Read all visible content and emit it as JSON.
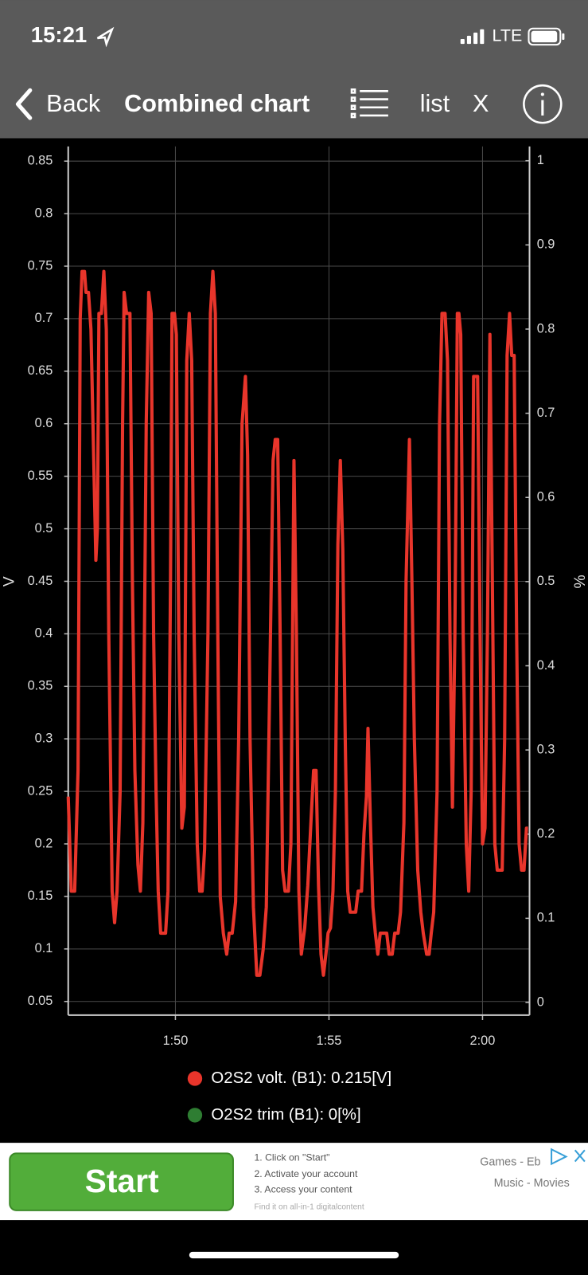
{
  "status_bar": {
    "time": "15:21",
    "network": "LTE"
  },
  "nav": {
    "back": "Back",
    "title": "Combined chart",
    "list": "list",
    "close": "X"
  },
  "chart_data": {
    "type": "line",
    "y_label": "V",
    "y2_label": "%",
    "x": [
      106.51,
      106.61,
      106.72,
      106.83,
      106.9,
      106.96,
      107.04,
      107.09,
      107.17,
      107.25,
      107.33,
      107.41,
      107.46,
      107.51,
      107.59,
      107.67,
      107.75,
      107.83,
      107.94,
      108.02,
      108.1,
      108.2,
      108.28,
      108.33,
      108.41,
      108.52,
      108.6,
      108.68,
      108.78,
      108.86,
      108.94,
      109.05,
      109.13,
      109.21,
      109.29,
      109.37,
      109.44,
      109.52,
      109.68,
      109.76,
      109.84,
      109.89,
      109.97,
      110.03,
      110.11,
      110.21,
      110.29,
      110.37,
      110.45,
      110.53,
      110.61,
      110.71,
      110.79,
      110.87,
      110.95,
      111.06,
      111.14,
      111.22,
      111.3,
      111.38,
      111.46,
      111.56,
      111.67,
      111.75,
      111.85,
      111.96,
      112.06,
      112.17,
      112.28,
      112.35,
      112.43,
      112.54,
      112.65,
      112.75,
      112.86,
      112.96,
      113.07,
      113.18,
      113.25,
      113.33,
      113.41,
      113.49,
      113.57,
      113.68,
      113.76,
      113.86,
      113.94,
      114.02,
      114.1,
      114.21,
      114.31,
      114.42,
      114.5,
      114.58,
      114.66,
      114.74,
      114.82,
      114.9,
      114.97,
      115.05,
      115.13,
      115.21,
      115.29,
      115.37,
      115.45,
      115.53,
      115.61,
      115.69,
      115.77,
      115.87,
      115.95,
      116.06,
      116.14,
      116.22,
      116.27,
      116.35,
      116.43,
      116.51,
      116.59,
      116.67,
      116.77,
      116.88,
      116.96,
      117.06,
      117.14,
      117.25,
      117.33,
      117.44,
      117.51,
      117.62,
      117.7,
      117.78,
      117.89,
      117.99,
      118.07,
      118.18,
      118.26,
      118.33,
      118.41,
      118.52,
      118.6,
      118.68,
      118.78,
      118.86,
      118.94,
      119.02,
      119.1,
      119.18,
      119.23,
      119.29,
      119.37,
      119.47,
      119.55,
      119.63,
      119.71,
      119.84,
      119.92,
      120.0,
      120.08,
      120.16,
      120.24,
      120.32,
      120.4,
      120.48,
      120.56,
      120.64,
      120.72,
      120.8,
      120.88,
      120.95,
      121.03,
      121.11,
      121.19,
      121.27,
      121.35,
      121.43,
      121.48
    ],
    "series": [
      {
        "name": "O2S2 volt. (B1): 0.215[V]",
        "color": "#e8352b",
        "values": [
          0.245,
          0.155,
          0.155,
          0.27,
          0.7,
          0.745,
          0.745,
          0.725,
          0.725,
          0.69,
          0.58,
          0.47,
          0.5,
          0.705,
          0.705,
          0.745,
          0.69,
          0.4,
          0.155,
          0.125,
          0.155,
          0.25,
          0.6,
          0.725,
          0.705,
          0.705,
          0.45,
          0.27,
          0.18,
          0.155,
          0.22,
          0.6,
          0.725,
          0.705,
          0.4,
          0.25,
          0.155,
          0.115,
          0.115,
          0.155,
          0.45,
          0.705,
          0.705,
          0.685,
          0.4,
          0.215,
          0.235,
          0.66,
          0.705,
          0.66,
          0.4,
          0.2,
          0.155,
          0.155,
          0.195,
          0.4,
          0.705,
          0.745,
          0.705,
          0.4,
          0.15,
          0.115,
          0.095,
          0.115,
          0.115,
          0.145,
          0.3,
          0.6,
          0.645,
          0.57,
          0.3,
          0.14,
          0.075,
          0.075,
          0.1,
          0.14,
          0.35,
          0.565,
          0.585,
          0.585,
          0.4,
          0.175,
          0.155,
          0.155,
          0.2,
          0.565,
          0.4,
          0.155,
          0.095,
          0.12,
          0.16,
          0.225,
          0.27,
          0.27,
          0.16,
          0.095,
          0.075,
          0.095,
          0.115,
          0.12,
          0.155,
          0.25,
          0.485,
          0.565,
          0.48,
          0.3,
          0.155,
          0.135,
          0.135,
          0.135,
          0.155,
          0.155,
          0.21,
          0.245,
          0.31,
          0.22,
          0.14,
          0.115,
          0.095,
          0.115,
          0.115,
          0.115,
          0.095,
          0.095,
          0.115,
          0.115,
          0.135,
          0.22,
          0.45,
          0.585,
          0.45,
          0.3,
          0.175,
          0.135,
          0.115,
          0.095,
          0.095,
          0.115,
          0.135,
          0.25,
          0.6,
          0.705,
          0.705,
          0.66,
          0.4,
          0.235,
          0.4,
          0.705,
          0.705,
          0.685,
          0.4,
          0.2,
          0.155,
          0.25,
          0.645,
          0.645,
          0.4,
          0.2,
          0.215,
          0.4,
          0.685,
          0.45,
          0.2,
          0.175,
          0.175,
          0.175,
          0.3,
          0.665,
          0.705,
          0.665,
          0.665,
          0.4,
          0.2,
          0.175,
          0.175,
          0.215,
          0.215
        ]
      },
      {
        "name": "O2S2 trim (B1): 0[%]",
        "color": "#2e7d32",
        "axis": "y2"
      }
    ],
    "xlim": [
      106.51,
      121.53
    ],
    "xticks": [
      {
        "value": 110,
        "label": "1:50"
      },
      {
        "value": 115,
        "label": "1:55"
      },
      {
        "value": 120,
        "label": "2:00"
      }
    ],
    "ylim": [
      0.037,
      0.864
    ],
    "yticks": [
      0.05,
      0.1,
      0.15,
      0.2,
      0.25,
      0.3,
      0.35,
      0.4,
      0.45,
      0.5,
      0.55,
      0.6,
      0.65,
      0.7,
      0.75,
      0.8,
      0.85
    ],
    "y2lim": [
      -0.015,
      1.017
    ],
    "y2ticks": [
      0,
      0.1,
      0.2,
      0.3,
      0.4,
      0.5,
      0.6,
      0.7,
      0.8,
      0.9,
      1
    ],
    "grid": true
  },
  "ad": {
    "button": "Start",
    "steps": [
      "1. Click on \"Start\"",
      "2. Activate your account",
      "3. Access your content"
    ],
    "footnote": "Find it on all-in-1 digitalcontent",
    "tags": [
      "Games - Eb",
      "Music - Movies"
    ]
  }
}
